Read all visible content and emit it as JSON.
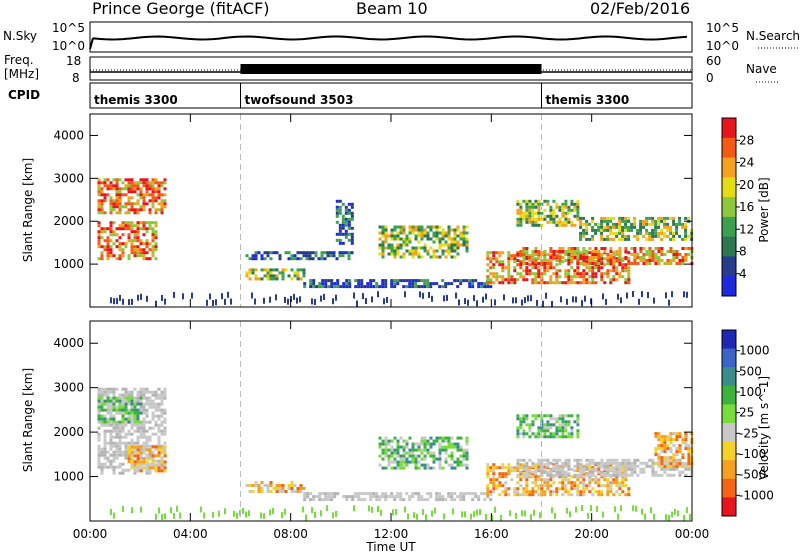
{
  "header": {
    "station": "Prince George (fitACF)",
    "beam": "Beam 10",
    "date": "02/Feb/2016"
  },
  "panels": {
    "nsky": {
      "left_label": "N.Sky",
      "left_ticks": [
        "10^5",
        "10^0"
      ],
      "right_label": "N.Search",
      "right_ticks": [
        "10^5",
        "10^0"
      ]
    },
    "freq": {
      "left_label_1": "Freq.",
      "left_label_2": "[MHz]",
      "left_ticks": [
        "18",
        "8"
      ],
      "right_label": "Nave",
      "right_ticks": [
        "60",
        "0"
      ]
    },
    "cpid": {
      "label": "CPID",
      "modes": [
        {
          "name": "themis 3300",
          "start_h": 0
        },
        {
          "name": "twofsound 3503",
          "start_h": 6
        },
        {
          "name": "themis 3300",
          "start_h": 18
        }
      ]
    }
  },
  "chart_data": [
    {
      "type": "heatmap",
      "name": "power",
      "ylabel": "Slant Range [km]",
      "xlim": [
        0,
        24
      ],
      "ylim": [
        0,
        4500
      ],
      "yticks": [
        "1000",
        "2000",
        "3000",
        "4000"
      ],
      "colorbar_label": "Power [dB]",
      "colorbar_ticks": [
        "28",
        "24",
        "20",
        "16",
        "12",
        "8",
        "4"
      ],
      "colorbar_colors": [
        "#e8141e",
        "#f55a14",
        "#f5a01e",
        "#e6dc14",
        "#8cc83c",
        "#3ca050",
        "#2d7850",
        "#283c8c",
        "#1e28dc"
      ],
      "regions": [
        {
          "t0": 0.3,
          "t1": 3.0,
          "r0": 2200,
          "r1": 3000,
          "level": "high"
        },
        {
          "t0": 0.3,
          "t1": 2.6,
          "r0": 1100,
          "r1": 2000,
          "level": "high"
        },
        {
          "t0": 6.2,
          "t1": 10.5,
          "r0": 1100,
          "r1": 1300,
          "level": "low"
        },
        {
          "t0": 6.2,
          "t1": 8.5,
          "r0": 650,
          "r1": 900,
          "level": "mid"
        },
        {
          "t0": 8.5,
          "t1": 16.0,
          "r0": 450,
          "r1": 650,
          "level": "low"
        },
        {
          "t0": 9.8,
          "t1": 10.4,
          "r0": 1500,
          "r1": 2500,
          "level": "low"
        },
        {
          "t0": 11.5,
          "t1": 15.0,
          "r0": 1200,
          "r1": 1900,
          "level": "mid"
        },
        {
          "t0": 15.8,
          "t1": 21.5,
          "r0": 600,
          "r1": 1300,
          "level": "high"
        },
        {
          "t0": 17.0,
          "t1": 24.0,
          "r0": 1000,
          "r1": 1400,
          "level": "high"
        },
        {
          "t0": 17.0,
          "t1": 19.5,
          "r0": 1900,
          "r1": 2500,
          "level": "mid"
        },
        {
          "t0": 19.5,
          "t1": 24.0,
          "r0": 1600,
          "r1": 2100,
          "level": "mid"
        }
      ]
    },
    {
      "type": "heatmap",
      "name": "velocity",
      "ylabel": "Slant Range [km]",
      "xlabel": "Time UT",
      "xlim": [
        0,
        24
      ],
      "ylim": [
        0,
        4500
      ],
      "xticks": [
        "00:00",
        "04:00",
        "08:00",
        "12:00",
        "16:00",
        "20:00",
        "00:00"
      ],
      "yticks": [
        "1000",
        "2000",
        "3000",
        "4000"
      ],
      "colorbar_label": "Velocity [m s^-1]",
      "colorbar_ticks": [
        "1000",
        "500",
        "100",
        "25",
        "-25",
        "-100",
        "-500",
        "-1000"
      ],
      "colorbar_colors": [
        "#1e28b4",
        "#3c64c8",
        "#3c8c8c",
        "#3cb43c",
        "#78dc3c",
        "#c8c8c8",
        "#f5d228",
        "#f5a01e",
        "#f56414",
        "#e8141e"
      ],
      "regions": [
        {
          "t0": 0.3,
          "t1": 3.0,
          "r0": 1100,
          "r1": 3000,
          "level": "gray"
        },
        {
          "t0": 0.3,
          "t1": 2.0,
          "r0": 2200,
          "r1": 2800,
          "level": "pos"
        },
        {
          "t0": 1.5,
          "t1": 3.0,
          "r0": 1100,
          "r1": 1700,
          "level": "neg"
        },
        {
          "t0": 6.2,
          "t1": 8.5,
          "r0": 650,
          "r1": 900,
          "level": "neg"
        },
        {
          "t0": 8.5,
          "t1": 16.0,
          "r0": 450,
          "r1": 650,
          "level": "gray"
        },
        {
          "t0": 11.5,
          "t1": 15.0,
          "r0": 1200,
          "r1": 1900,
          "level": "pos"
        },
        {
          "t0": 15.8,
          "t1": 21.5,
          "r0": 600,
          "r1": 1300,
          "level": "neg"
        },
        {
          "t0": 17.0,
          "t1": 24.0,
          "r0": 1000,
          "r1": 1400,
          "level": "gray"
        },
        {
          "t0": 17.0,
          "t1": 19.5,
          "r0": 1900,
          "r1": 2400,
          "level": "pos"
        },
        {
          "t0": 22.5,
          "t1": 24.0,
          "r0": 1200,
          "r1": 2000,
          "level": "neg"
        }
      ]
    }
  ]
}
